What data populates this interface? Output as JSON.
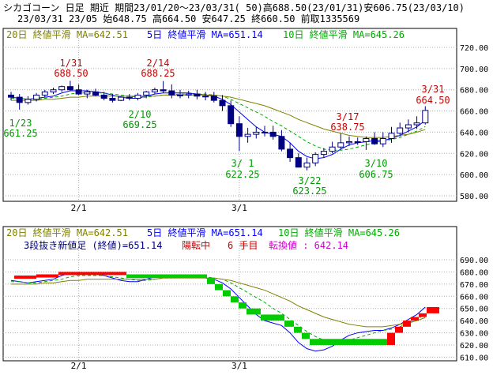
{
  "header": {
    "line1": "シカゴコーン 日足 期近 期間23/01/20～23/03/31( 50)高688.50(23/01/31)安606.75(23/03/10)",
    "line2": "23/03/31 23/05 始648.75 高664.50 安647.25 終660.50 前取1335569"
  },
  "upper": {
    "legend": {
      "ma20": "20日 終値平滑 MA=642.51",
      "ma5": "5日 終値平滑 MA=651.14",
      "ma10": "10日 終値平滑 MA=645.26"
    },
    "y_ticks": [
      "720.00",
      "700.00",
      "680.00",
      "660.00",
      "640.00",
      "620.00",
      "600.00",
      "580.00"
    ],
    "x_ticks": [
      "2/1",
      "3/1"
    ],
    "annotations": [
      {
        "date": "1/31",
        "value": "688.50",
        "color": "#cc0000"
      },
      {
        "date": "2/14",
        "value": "688.25",
        "color": "#cc0000"
      },
      {
        "date": "1/23",
        "value": "661.25",
        "color": "#009900"
      },
      {
        "date": "2/10",
        "value": "669.25",
        "color": "#009900"
      },
      {
        "date": "3/17",
        "value": "638.75",
        "color": "#cc0000"
      },
      {
        "date": "3/31",
        "value": "664.50",
        "color": "#cc0000"
      },
      {
        "date": "3/ 1",
        "value": "622.25",
        "color": "#009900"
      },
      {
        "date": "3/22",
        "value": "623.25",
        "color": "#009900"
      },
      {
        "date": "3/10",
        "value": "606.75",
        "color": "#009900"
      }
    ]
  },
  "lower": {
    "legend": {
      "ma20": "20日 終値平滑 MA=642.51",
      "ma5": "5日 終値平滑 MA=651.14",
      "ma10": "10日 終値平滑 MA=645.26"
    },
    "info": {
      "part1": "3段抜き新値足 (終値)=651.14",
      "part2": "陽転中",
      "part3": "6 手目",
      "part4": "転換値 : 642.14"
    },
    "y_ticks": [
      "690.00",
      "680.00",
      "670.00",
      "660.00",
      "650.00",
      "640.00",
      "630.00",
      "620.00",
      "610.00"
    ],
    "x_ticks": [
      "2/1",
      "3/1"
    ]
  },
  "colors": {
    "up": "#ffffff",
    "down": "#000080",
    "ma5": "#0000ff",
    "ma10": "#00aa00",
    "ma20": "#808000",
    "rise": "#ff0000",
    "fall": "#00cc00"
  },
  "chart_data": [
    {
      "type": "candlestick",
      "y_unit": "price",
      "ylim": [
        580,
        720
      ],
      "dates": [
        "1/20",
        "1/23",
        "1/24",
        "1/25",
        "1/26",
        "1/27",
        "1/30",
        "1/31",
        "2/1",
        "2/2",
        "2/3",
        "2/6",
        "2/7",
        "2/8",
        "2/9",
        "2/10",
        "2/13",
        "2/14",
        "2/15",
        "2/16",
        "2/17",
        "2/21",
        "2/22",
        "2/23",
        "2/24",
        "2/27",
        "2/28",
        "3/1",
        "3/2",
        "3/3",
        "3/6",
        "3/7",
        "3/8",
        "3/9",
        "3/10",
        "3/13",
        "3/14",
        "3/15",
        "3/16",
        "3/17",
        "3/20",
        "3/21",
        "3/22",
        "3/23",
        "3/24",
        "3/27",
        "3/28",
        "3/29",
        "3/30",
        "3/31"
      ],
      "open": [
        675,
        673,
        668,
        671,
        675,
        678,
        680,
        683,
        680,
        676,
        678,
        675,
        672,
        670,
        673,
        672,
        675,
        678,
        680,
        679,
        675,
        675,
        676,
        674,
        674,
        670,
        665,
        648,
        636,
        638,
        640,
        640,
        636,
        624,
        616,
        607,
        611,
        619,
        622,
        626,
        630,
        631,
        631,
        634,
        629,
        634,
        639,
        644,
        647,
        648.75
      ],
      "high": [
        678,
        676,
        674,
        677,
        680,
        682,
        684,
        688.5,
        685,
        680,
        681,
        678,
        676,
        674,
        676,
        677,
        679,
        682,
        688.25,
        685,
        680,
        679,
        680,
        678,
        678,
        675,
        670,
        655,
        644,
        645,
        646,
        646,
        642,
        630,
        620,
        616,
        621,
        625,
        631,
        638.75,
        636,
        635,
        636,
        640,
        640,
        645,
        649,
        652,
        655,
        664.5
      ],
      "low": [
        670,
        661.25,
        666,
        669,
        673,
        676,
        678,
        679,
        675,
        672,
        674,
        670,
        668,
        669.25,
        670,
        670,
        672,
        676,
        677,
        672,
        672,
        672,
        671,
        670,
        668,
        660,
        645,
        622.25,
        630,
        634,
        636,
        633,
        622,
        612,
        606.75,
        604,
        608,
        616,
        620,
        624,
        627,
        628,
        623.25,
        628,
        626,
        630,
        636,
        640,
        643,
        647.25
      ],
      "close": [
        673,
        668,
        671,
        675,
        678,
        680,
        683,
        680,
        676,
        678,
        675,
        672,
        670,
        673,
        672,
        675,
        678,
        680,
        679,
        675,
        675,
        676,
        674,
        674,
        670,
        665,
        648,
        636,
        638,
        640,
        640,
        636,
        624,
        616,
        607,
        611,
        619,
        622,
        626,
        630,
        631,
        631,
        634,
        629,
        634,
        639,
        644,
        647,
        648.75,
        660.5
      ],
      "series": [
        {
          "name": "5日 終値平滑",
          "values": [
            673,
            672,
            671,
            672,
            673,
            674,
            677,
            679,
            679,
            679,
            678,
            677,
            675,
            673,
            672,
            672,
            674,
            676,
            677,
            677,
            677,
            677,
            676,
            675,
            674,
            671,
            666,
            659,
            652,
            645,
            640,
            638,
            636,
            630,
            622,
            617,
            615,
            616,
            619,
            624,
            628,
            630,
            631,
            632,
            632,
            634,
            637,
            641,
            645,
            651.14
          ]
        },
        {
          "name": "10日 終値平滑",
          "values": [
            672,
            672,
            671,
            671,
            672,
            673,
            674,
            676,
            677,
            677,
            677,
            677,
            676,
            675,
            674,
            673,
            673,
            674,
            675,
            675,
            676,
            676,
            676,
            676,
            675,
            674,
            671,
            667,
            663,
            659,
            655,
            650,
            646,
            641,
            636,
            631,
            627,
            624,
            623,
            623,
            624,
            626,
            628,
            630,
            632,
            633,
            635,
            638,
            641,
            645.26
          ]
        },
        {
          "name": "20日 終値平滑",
          "values": [
            670,
            670,
            670,
            670,
            671,
            671,
            672,
            673,
            673,
            674,
            674,
            674,
            674,
            674,
            674,
            674,
            674,
            674,
            675,
            675,
            675,
            675,
            675,
            675,
            675,
            674,
            673,
            671,
            669,
            667,
            665,
            662,
            659,
            656,
            652,
            649,
            646,
            643,
            641,
            639,
            637,
            636,
            635,
            635,
            635,
            636,
            637,
            638,
            640,
            642.51
          ]
        }
      ]
    },
    {
      "type": "three-line-break",
      "basis": "close",
      "ylim": [
        610,
        690
      ],
      "blocks": [
        {
          "dir": "up",
          "from": 675,
          "to": 677
        },
        {
          "dir": "up",
          "from": 677,
          "to": 678
        },
        {
          "dir": "up",
          "from": 678,
          "to": 680
        },
        {
          "dir": "down",
          "from": 678,
          "to": 675
        },
        {
          "dir": "down",
          "from": 675,
          "to": 670
        },
        {
          "dir": "down",
          "from": 670,
          "to": 665
        },
        {
          "dir": "down",
          "from": 665,
          "to": 660
        },
        {
          "dir": "down",
          "from": 660,
          "to": 655
        },
        {
          "dir": "down",
          "from": 655,
          "to": 650
        },
        {
          "dir": "down",
          "from": 650,
          "to": 645
        },
        {
          "dir": "down",
          "from": 645,
          "to": 640
        },
        {
          "dir": "down",
          "from": 640,
          "to": 635
        },
        {
          "dir": "down",
          "from": 635,
          "to": 630
        },
        {
          "dir": "down",
          "from": 630,
          "to": 625
        },
        {
          "dir": "down",
          "from": 625,
          "to": 620
        },
        {
          "dir": "up",
          "from": 620,
          "to": 630
        },
        {
          "dir": "up",
          "from": 630,
          "to": 635
        },
        {
          "dir": "up",
          "from": 635,
          "to": 640
        },
        {
          "dir": "up",
          "from": 640,
          "to": 643
        },
        {
          "dir": "up",
          "from": 643,
          "to": 646
        },
        {
          "dir": "up",
          "from": 646,
          "to": 651.14
        }
      ]
    }
  ]
}
